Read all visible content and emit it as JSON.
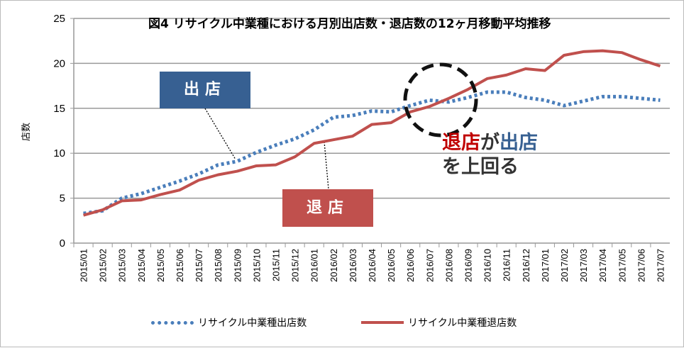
{
  "chart_data": {
    "type": "line",
    "title": "図4  リサイクル中業種における月別出店数・退店数の12ヶ月移動平均推移",
    "ylabel": "店数",
    "xlabel": "",
    "ylim": [
      0,
      25
    ],
    "yticks": [
      "0",
      "5",
      "10",
      "15",
      "20",
      "25"
    ],
    "grid": true,
    "legend": "bottom",
    "categories": [
      "2015/01",
      "2015/02",
      "2015/03",
      "2015/04",
      "2015/05",
      "2015/06",
      "2015/07",
      "2015/08",
      "2015/09",
      "2015/10",
      "2015/11",
      "2015/12",
      "2016/01",
      "2016/02",
      "2016/03",
      "2016/04",
      "2016/05",
      "2016/06",
      "2016/07",
      "2016/08",
      "2016/09",
      "2016/10",
      "2016/11",
      "2016/12",
      "2017/01",
      "2017/02",
      "2017/03",
      "2017/04",
      "2017/05",
      "2017/06",
      "2017/07"
    ],
    "series": [
      {
        "name": "リサイクル中業種出店数",
        "color": "#4a7ebb",
        "style": "dotted",
        "values": [
          3.3,
          3.6,
          5.0,
          5.5,
          6.2,
          6.9,
          7.7,
          8.7,
          9.1,
          10.1,
          10.9,
          11.6,
          12.6,
          14.0,
          14.2,
          14.7,
          14.6,
          15.3,
          15.9,
          15.7,
          16.2,
          16.8,
          16.8,
          16.2,
          15.9,
          15.3,
          15.8,
          16.3,
          16.3,
          16.1,
          15.9
        ]
      },
      {
        "name": "リサイクル中業種退店数",
        "color": "#c0504d",
        "style": "solid",
        "values": [
          3.1,
          3.7,
          4.7,
          4.8,
          5.4,
          5.9,
          7.0,
          7.6,
          8.0,
          8.6,
          8.7,
          9.6,
          11.1,
          11.5,
          11.9,
          13.2,
          13.4,
          14.6,
          15.2,
          16.1,
          17.1,
          18.3,
          18.7,
          19.4,
          19.2,
          20.9,
          21.3,
          21.4,
          21.2,
          20.4,
          19.7
        ]
      }
    ],
    "annotations": {
      "open_label": "出店",
      "close_label": "退店",
      "note_red": "退店",
      "note_mid": "が",
      "note_blue": "出店",
      "note_line2": "を上回る",
      "open_box_color": "#376092",
      "close_box_color": "#c0504d"
    }
  }
}
